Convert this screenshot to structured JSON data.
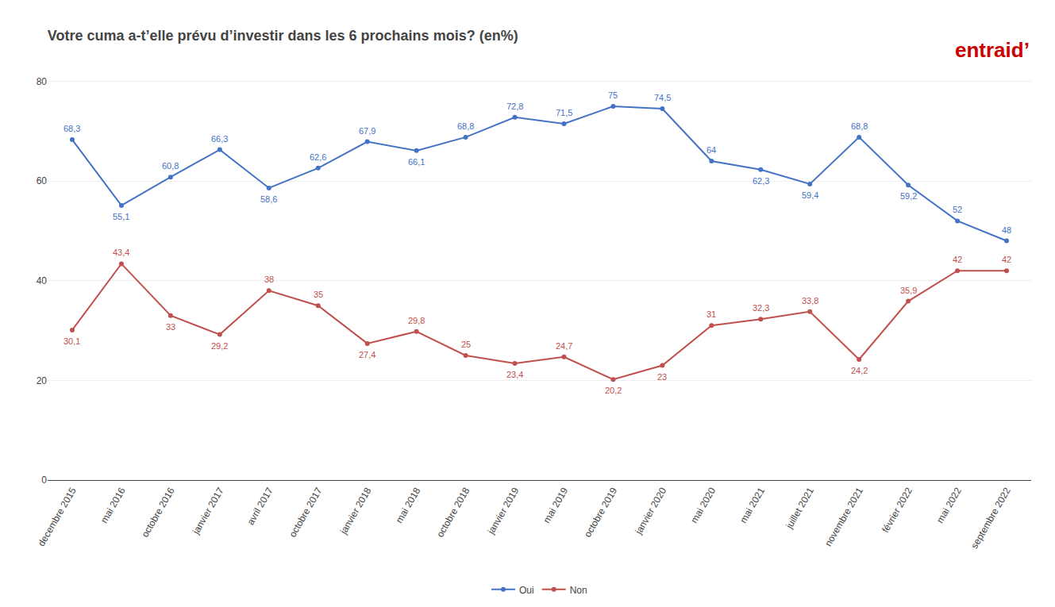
{
  "chart_data": {
    "type": "line",
    "title": "Votre cuma a-t’elle prévu d’investir dans les 6 prochains mois? (en%)",
    "categories": [
      "decembre 2015",
      "mai 2016",
      "octobre 2016",
      "janvier 2017",
      "avril 2017",
      "octobre 2017",
      "janvier 2018",
      "mai 2018",
      "octobre 2018",
      "janvier 2019",
      "mai 2019",
      "octobre 2019",
      "janvier 2020",
      "mai 2020",
      "mai 2021",
      "juillet 2021",
      "novembre 2021",
      "février 2022",
      "mai 2022",
      "septembre 2022"
    ],
    "series": [
      {
        "name": "Oui",
        "color": "#4472C4",
        "marker": "circle",
        "values": [
          68.3,
          55.1,
          60.8,
          66.3,
          58.6,
          62.6,
          67.9,
          66.1,
          68.8,
          72.8,
          71.5,
          75.0,
          74.5,
          64.0,
          62.3,
          59.4,
          68.8,
          59.2,
          52.0,
          48.0
        ],
        "value_labels": [
          "68,3",
          "55,1",
          "60,8",
          "66,3",
          "58,6",
          "62,6",
          "67,9",
          "66,1",
          "68,8",
          "72,8",
          "71,5",
          "75",
          "74,5",
          "64",
          "62,3",
          "59,4",
          "68,8",
          "59,2",
          "52",
          "48"
        ]
      },
      {
        "name": "Non",
        "color": "#C0504D",
        "marker": "circle",
        "values": [
          30.1,
          43.4,
          33.0,
          29.2,
          38.0,
          35.0,
          27.4,
          29.8,
          25.0,
          23.4,
          24.7,
          20.2,
          23.0,
          31.0,
          32.3,
          33.8,
          24.2,
          35.9,
          42.0,
          42.0
        ],
        "value_labels": [
          "30,1",
          "43,4",
          "33",
          "29,2",
          "38",
          "35",
          "27,4",
          "29,8",
          "25",
          "23,4",
          "24,7",
          "20,2",
          "23",
          "31",
          "32,3",
          "33,8",
          "24,2",
          "35,9",
          "42",
          "42"
        ]
      }
    ],
    "annotations": [
      {
        "text": "entraid’",
        "color": "#CC0000"
      }
    ],
    "ylim": [
      0,
      82
    ],
    "yticks": [
      0,
      20,
      40,
      60,
      80
    ],
    "grid": true,
    "legend": "bottom",
    "data_labels": true
  }
}
